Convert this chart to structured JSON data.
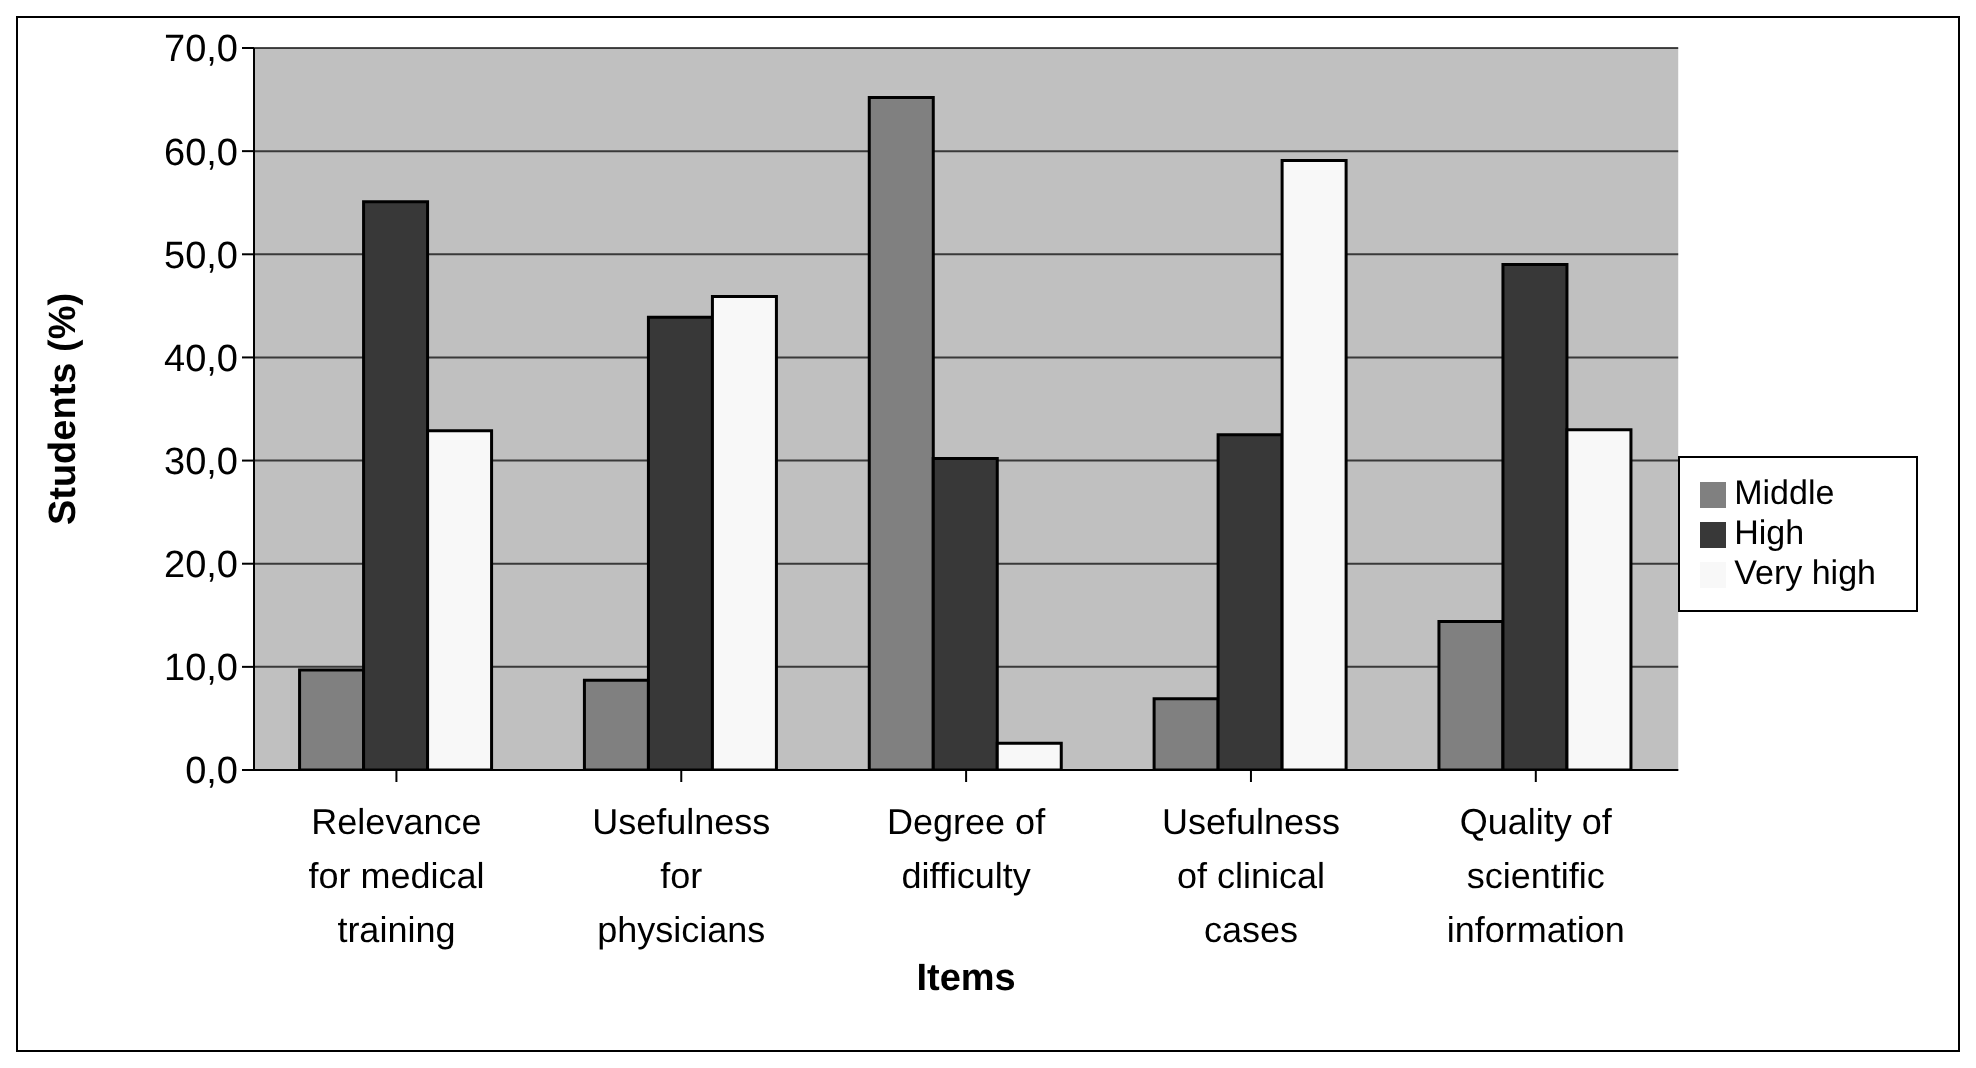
{
  "chart_data": {
    "type": "bar",
    "xlabel": "Items",
    "ylabel": "Students (%)",
    "categories": [
      "Relevance for medical training",
      "Usefulness for physicians",
      "Degree of difficulty",
      "Usefulness of clinical cases",
      "Quality of scientific information"
    ],
    "series": [
      {
        "name": "Middle",
        "color": "#808080",
        "values": [
          9.7,
          8.7,
          65.2,
          6.9,
          14.4
        ]
      },
      {
        "name": "High",
        "color": "#383838",
        "values": [
          55.1,
          43.9,
          30.2,
          32.5,
          49.0
        ]
      },
      {
        "name": "Very high",
        "color": "#f8f8f8",
        "values": [
          32.9,
          45.9,
          2.6,
          59.1,
          33.0
        ]
      }
    ],
    "ylim": [
      0,
      70
    ],
    "yticks": [
      {
        "value": 0,
        "label": "0,0"
      },
      {
        "value": 10,
        "label": "10,0"
      },
      {
        "value": 20,
        "label": "20,0"
      },
      {
        "value": 30,
        "label": "30,0"
      },
      {
        "value": 40,
        "label": "40,0"
      },
      {
        "value": 50,
        "label": "50,0"
      },
      {
        "value": 60,
        "label": "60,0"
      },
      {
        "value": 70,
        "label": "70,0"
      }
    ],
    "grid": "y",
    "legend": "right"
  }
}
